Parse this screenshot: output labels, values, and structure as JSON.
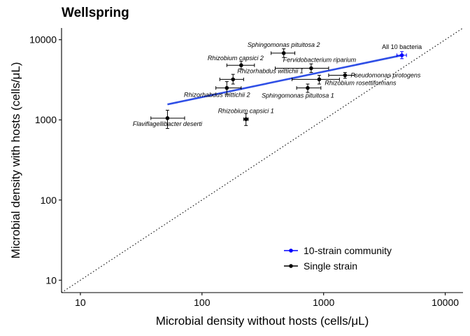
{
  "chart_data": {
    "type": "scatter",
    "title": "Wellspring",
    "xlabel": "Microbial density without hosts (cells/μL)",
    "ylabel": "Microbial density with hosts (cells/μL)",
    "x_scale": "log",
    "y_scale": "log",
    "xlim": [
      7,
      14000
    ],
    "ylim": [
      7,
      14000
    ],
    "x_ticks": [
      10,
      100,
      1000,
      10000
    ],
    "x_tick_labels": [
      "10",
      "100",
      "1000",
      "10000"
    ],
    "y_ticks": [
      10,
      100,
      1000,
      10000
    ],
    "y_tick_labels": [
      "10",
      "100",
      "1000",
      "10000"
    ],
    "grid": false,
    "reference_line": "y = x (dotted)",
    "legend_position": "bottom-right",
    "series": [
      {
        "name": "10-strain community",
        "color": "#0000ff",
        "points": [
          {
            "label": "All 10 bacteria",
            "x": 4400,
            "y": 6400,
            "x_err": [
              4000,
              4800
            ],
            "y_err": [
              5800,
              7100
            ]
          }
        ]
      },
      {
        "name": "Single strain",
        "color": "#000000",
        "points": [
          {
            "label": "Sphingomonas pituitosa 2",
            "x": 470,
            "y": 6800,
            "x_err": [
              370,
              580
            ],
            "y_err": [
              6000,
              7700
            ]
          },
          {
            "label": "Rhizobium capsici 2",
            "x": 210,
            "y": 4800,
            "x_err": [
              160,
              270
            ],
            "y_err": [
              4300,
              5400
            ]
          },
          {
            "label": "Fervidobacterium riparium",
            "x": 790,
            "y": 4400,
            "x_err": [
              400,
              1100
            ],
            "y_err": [
              3900,
              5000
            ]
          },
          {
            "label": "Rhizorhabdus wittichii 1",
            "x": 180,
            "y": 3200,
            "x_err": [
              140,
              220
            ],
            "y_err": [
              2800,
              3700
            ]
          },
          {
            "label": "Pseudomonas protogens",
            "x": 1500,
            "y": 3600,
            "x_err": [
              1100,
              1800
            ],
            "y_err": [
              3300,
              3900
            ]
          },
          {
            "label": "Rhizobium rosettiformans",
            "x": 920,
            "y": 3200,
            "x_err": [
              550,
              1350
            ],
            "y_err": [
              2800,
              3600
            ]
          },
          {
            "label": "Rhizorhabdus wittichii 2",
            "x": 160,
            "y": 2500,
            "x_err": [
              130,
              210
            ],
            "y_err": [
              2100,
              3000
            ]
          },
          {
            "label": "Sphingomonas pituitosa 1",
            "x": 740,
            "y": 2500,
            "x_err": [
              600,
              950
            ],
            "y_err": [
              2200,
              2800
            ]
          },
          {
            "label": "Rhizobium capsici 1",
            "x": 230,
            "y": 1020,
            "x_err": [
              220,
              240
            ],
            "y_err": [
              850,
              1200
            ]
          },
          {
            "label": "Flaviflagellibacter deserti",
            "x": 52,
            "y": 1050,
            "x_err": [
              38,
              72
            ],
            "y_err": [
              780,
              1320
            ]
          }
        ]
      }
    ],
    "fit_line": {
      "color": "#2f4fe6",
      "x": [
        52,
        4400
      ],
      "y": [
        1560,
        6400
      ]
    },
    "annotation_color": "#000000"
  }
}
